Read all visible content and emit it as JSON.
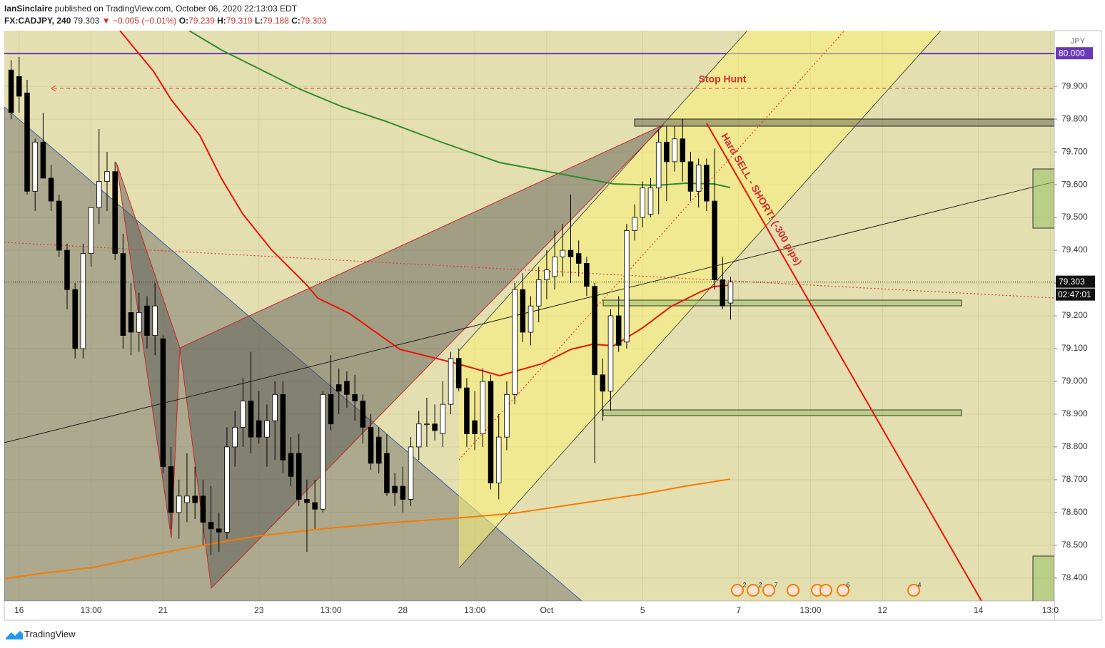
{
  "header": {
    "author": "IanSinclaire",
    "published": "published on TradingView.com, October 06, 2020 22:13:03 EDT",
    "symbol": "FX:CADJPY, 240",
    "last": "79.303",
    "change": "▼ −0.005 (−0.01%)",
    "ohlc": [
      {
        "key": "O:",
        "value": "79.239"
      },
      {
        "key": "H:",
        "value": "79.319"
      },
      {
        "key": "L:",
        "value": "79.188"
      },
      {
        "key": "C:",
        "value": "79.303"
      }
    ]
  },
  "chart_data": {
    "type": "candlestick",
    "categories": [
      null,
      "16",
      null,
      null,
      null,
      null,
      null,
      null,
      null,
      null,
      "13:00",
      null,
      null,
      null,
      null,
      null,
      null,
      null,
      null,
      "21",
      null,
      null,
      null,
      null,
      null,
      null,
      null,
      null,
      null,
      null,
      null,
      "23",
      null,
      null,
      null,
      null,
      null,
      null,
      null,
      null,
      "13:00",
      null,
      null,
      null,
      null,
      null,
      null,
      null,
      null,
      "28",
      null,
      null,
      null,
      null,
      null,
      null,
      null,
      null,
      "13:00",
      null,
      null,
      null,
      null,
      null,
      null,
      null,
      null,
      "Oct",
      null,
      null,
      null,
      null,
      null,
      null,
      null,
      null,
      null,
      null,
      null,
      "5",
      null,
      null,
      null,
      null,
      null,
      null,
      null,
      null,
      null,
      null,
      null,
      "7",
      null,
      null,
      null,
      null,
      null,
      null,
      null,
      null,
      "13:00",
      null,
      null,
      null,
      null,
      null,
      null,
      null,
      null,
      "12",
      null,
      null,
      null,
      null,
      null,
      null,
      null,
      null,
      null,
      null,
      null,
      "14",
      null,
      null,
      null,
      null,
      null,
      null,
      null,
      null,
      "13:0"
    ],
    "open": [
      79.95,
      79.93,
      79.88,
      79.58,
      79.73,
      79.62,
      79.55,
      79.4,
      79.28,
      79.1,
      79.39,
      79.53,
      79.61,
      79.64,
      79.39,
      79.21,
      79.15,
      79.23,
      79.14,
      79.13,
      78.74,
      78.6,
      78.63,
      78.65,
      78.65,
      78.57,
      78.55,
      78.54,
      78.8,
      78.86,
      78.94,
      78.88,
      78.83,
      78.88,
      78.96,
      78.78,
      78.78,
      78.64,
      78.63,
      78.61,
      78.96,
      78.99,
      79.0,
      78.96,
      78.94,
      78.86,
      78.83,
      78.78,
      78.68,
      78.68,
      78.64,
      78.8,
      78.87,
      78.87,
      78.84,
      78.93,
      79.07,
      78.98,
      78.88,
      78.84,
      79.0,
      78.69,
      78.83,
      78.96,
      79.28,
      79.15,
      79.23,
      79.31,
      79.32,
      79.38,
      79.4,
      79.39,
      79.36,
      79.29,
      79.02,
      78.97,
      79.2,
      79.12,
      79.46,
      79.5,
      79.51,
      79.59,
      79.73,
      79.67,
      79.74,
      79.67,
      79.58,
      79.66,
      79.55,
      79.31,
      79.239,
      null,
      null,
      null,
      null,
      null,
      null,
      null,
      null,
      null,
      null,
      null,
      null,
      null,
      null,
      null,
      null,
      null,
      null,
      null,
      null,
      null,
      null,
      null,
      null,
      null,
      null,
      null,
      null,
      null,
      null,
      null,
      null,
      null,
      null,
      null,
      null,
      null,
      null,
      null,
      null
    ],
    "high": [
      79.98,
      79.99,
      79.92,
      79.74,
      79.82,
      79.66,
      79.57,
      79.42,
      79.3,
      79.42,
      79.53,
      79.77,
      79.7,
      79.67,
      79.45,
      79.3,
      79.27,
      79.26,
      79.3,
      79.14,
      78.8,
      78.7,
      78.78,
      78.74,
      78.7,
      78.68,
      78.6,
      78.86,
      78.91,
      79.01,
      79.09,
      78.97,
      78.93,
      79.0,
      79.0,
      78.83,
      78.84,
      78.7,
      78.7,
      78.97,
      79.08,
      79.04,
      79.03,
      79.02,
      78.96,
      78.9,
      78.86,
      78.84,
      78.72,
      78.74,
      78.83,
      78.91,
      78.95,
      78.93,
      79.0,
      79.09,
      79.1,
      79.01,
      78.97,
      79.04,
      79.02,
      78.9,
      79.0,
      79.3,
      79.33,
      79.26,
      79.35,
      79.4,
      79.46,
      79.48,
      79.57,
      79.43,
      79.38,
      79.3,
      79.07,
      79.22,
      79.26,
      79.48,
      79.54,
      79.61,
      79.62,
      79.77,
      79.78,
      79.78,
      79.8,
      79.7,
      79.68,
      79.68,
      79.71,
      79.38,
      79.319,
      null,
      null,
      null,
      null,
      null,
      null,
      null,
      null,
      null,
      null,
      null,
      null,
      null,
      null,
      null,
      null,
      null,
      null,
      null,
      null,
      null,
      null,
      null,
      null,
      null,
      null,
      null,
      null,
      null,
      null,
      null,
      null,
      null,
      null,
      null,
      null,
      null,
      null,
      null,
      null
    ],
    "low": [
      79.8,
      79.82,
      79.57,
      79.52,
      79.63,
      79.52,
      79.38,
      79.22,
      79.07,
      79.07,
      79.35,
      79.48,
      79.52,
      79.37,
      79.1,
      79.08,
      79.09,
      79.1,
      79.08,
      78.72,
      78.55,
      78.52,
      78.57,
      78.58,
      78.5,
      78.47,
      78.48,
      78.52,
      78.74,
      78.8,
      78.78,
      78.81,
      78.74,
      78.76,
      78.72,
      78.68,
      78.62,
      78.48,
      78.55,
      78.6,
      78.85,
      78.9,
      78.92,
      78.88,
      78.81,
      78.73,
      78.72,
      78.65,
      78.62,
      78.6,
      78.62,
      78.76,
      78.8,
      78.82,
      78.8,
      78.9,
      78.97,
      78.8,
      78.79,
      78.8,
      78.67,
      78.64,
      78.79,
      78.93,
      79.12,
      79.11,
      79.18,
      79.25,
      79.28,
      79.32,
      79.3,
      79.32,
      79.26,
      78.75,
      78.88,
      78.91,
      79.09,
      79.1,
      79.43,
      79.47,
      79.5,
      79.51,
      79.55,
      79.64,
      79.61,
      79.55,
      79.53,
      79.52,
      79.28,
      79.22,
      79.188,
      null,
      null,
      null,
      null,
      null,
      null,
      null,
      null,
      null,
      null,
      null,
      null,
      null,
      null,
      null,
      null,
      null,
      null,
      null,
      null,
      null,
      null,
      null,
      null,
      null,
      null,
      null,
      null,
      null,
      null,
      null,
      null,
      null,
      null,
      null,
      null,
      null,
      null,
      null,
      null
    ],
    "close": [
      79.82,
      79.87,
      79.58,
      79.73,
      79.62,
      79.55,
      79.4,
      79.28,
      79.1,
      79.39,
      79.53,
      79.61,
      79.64,
      79.39,
      79.14,
      79.15,
      79.21,
      79.14,
      79.23,
      78.74,
      78.6,
      78.65,
      78.65,
      78.63,
      78.57,
      78.55,
      78.54,
      78.8,
      78.86,
      78.94,
      78.83,
      78.83,
      78.88,
      78.96,
      78.76,
      78.71,
      78.64,
      78.63,
      78.61,
      78.96,
      78.87,
      78.97,
      78.96,
      78.94,
      78.86,
      78.75,
      78.75,
      78.66,
      78.66,
      78.64,
      78.8,
      78.87,
      78.87,
      78.85,
      78.93,
      79.07,
      78.98,
      78.84,
      78.84,
      79.0,
      78.69,
      78.83,
      78.96,
      79.28,
      79.15,
      79.23,
      79.31,
      79.34,
      79.38,
      79.4,
      79.38,
      79.36,
      79.29,
      79.02,
      78.97,
      79.2,
      79.11,
      79.46,
      79.5,
      79.59,
      79.59,
      79.73,
      79.67,
      79.74,
      79.67,
      79.58,
      79.66,
      79.55,
      79.31,
      79.23,
      79.303,
      null,
      null,
      null,
      null,
      null,
      null,
      null,
      null,
      null,
      null,
      null,
      null,
      null,
      null,
      null,
      null,
      null,
      null,
      null,
      null,
      null,
      null,
      null,
      null,
      null,
      null,
      null,
      null,
      null,
      null,
      null,
      null,
      null,
      null,
      null,
      null,
      null,
      null,
      null,
      null
    ],
    "up_color": "#ffffff",
    "down_color": "#000000",
    "ylim": [
      78.33,
      80.07
    ],
    "yticks": [
      {
        "value": 79.9,
        "label": "79.900"
      },
      {
        "value": 79.8,
        "label": "79.800"
      },
      {
        "value": 79.7,
        "label": "79.700"
      },
      {
        "value": 79.6,
        "label": "79.600"
      },
      {
        "value": 79.5,
        "label": "79.500"
      },
      {
        "value": 79.4,
        "label": "79.400"
      },
      {
        "value": 79.3,
        "label": "79.300"
      },
      {
        "value": 79.2,
        "label": "79.200"
      },
      {
        "value": 79.1,
        "label": "79.100"
      },
      {
        "value": 79.0,
        "label": "79.000"
      },
      {
        "value": 78.9,
        "label": "78.900"
      },
      {
        "value": 78.8,
        "label": "78.800"
      },
      {
        "value": 78.7,
        "label": "78.700"
      },
      {
        "value": 78.6,
        "label": "78.600"
      },
      {
        "value": 78.5,
        "label": "78.500"
      },
      {
        "value": 78.4,
        "label": "78.400"
      }
    ],
    "grid": true,
    "currency": "JPY",
    "level_label": {
      "value": 80,
      "label": "80.000",
      "color": "#673ab7"
    },
    "last_price": 79.303,
    "countdown": "02:47:01",
    "annotations": [
      "Stop Hunt",
      "Hard SELL - SHORT! (-300 pips)"
    ],
    "event_counts": [
      2,
      2,
      7,
      6,
      4
    ]
  },
  "footer": {
    "brand": "TradingView"
  }
}
